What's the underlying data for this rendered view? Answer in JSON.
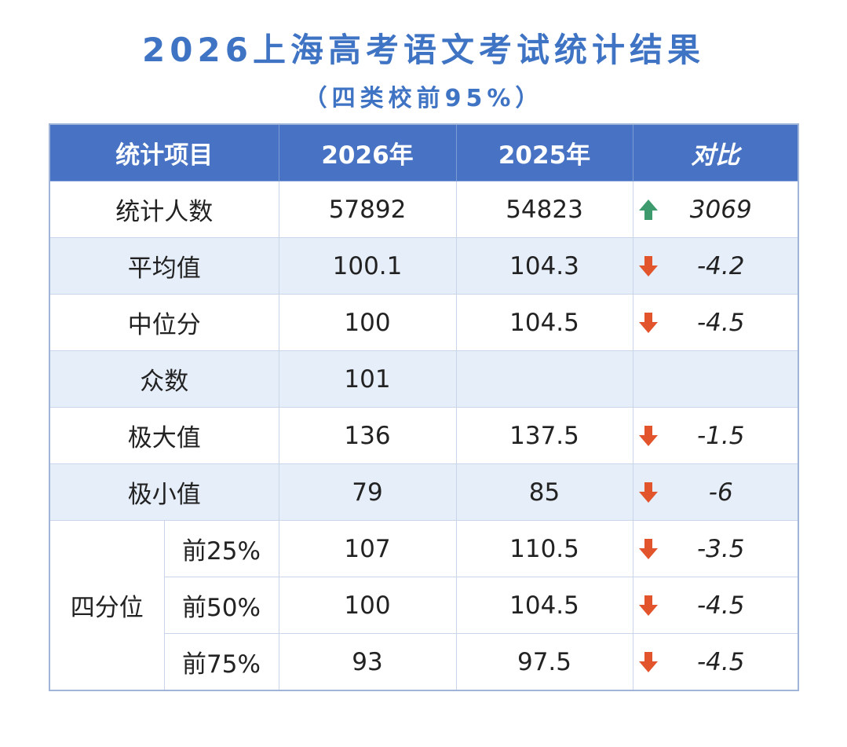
{
  "title": "2026上海高考语文考试统计结果",
  "subtitle": "（四类校前95%）",
  "table": {
    "header": [
      "统计项目",
      "2026年",
      "2025年",
      "对比"
    ],
    "rows": [
      {
        "label": "统计人数",
        "y2026": 57892,
        "y2025": 54823,
        "diff": 3069
      },
      {
        "label": "平均值",
        "y2026": 100.1,
        "y2025": 104.3,
        "diff": -4.2
      },
      {
        "label": "中位分",
        "y2026": 100,
        "y2025": 104.5,
        "diff": -4.5
      },
      {
        "label": "众数",
        "y2026": 101
      },
      {
        "label": "极大值",
        "y2026": 136,
        "y2025": 137.5,
        "diff": -1.5
      },
      {
        "label": "极小值",
        "y2026": 79,
        "y2025": 85,
        "diff": -6
      },
      {
        "label": "四分位",
        "rows": [
          {
            "label": "前25%",
            "y2026": 107,
            "y2025": 110.5,
            "diff": -3.5
          },
          {
            "label": "前50%",
            "y2026": 100,
            "y2025": 104.5,
            "diff": -4.5
          },
          {
            "label": "前75%",
            "y2026": 93,
            "y2025": 97.5,
            "diff": -4.5
          }
        ]
      }
    ]
  }
}
